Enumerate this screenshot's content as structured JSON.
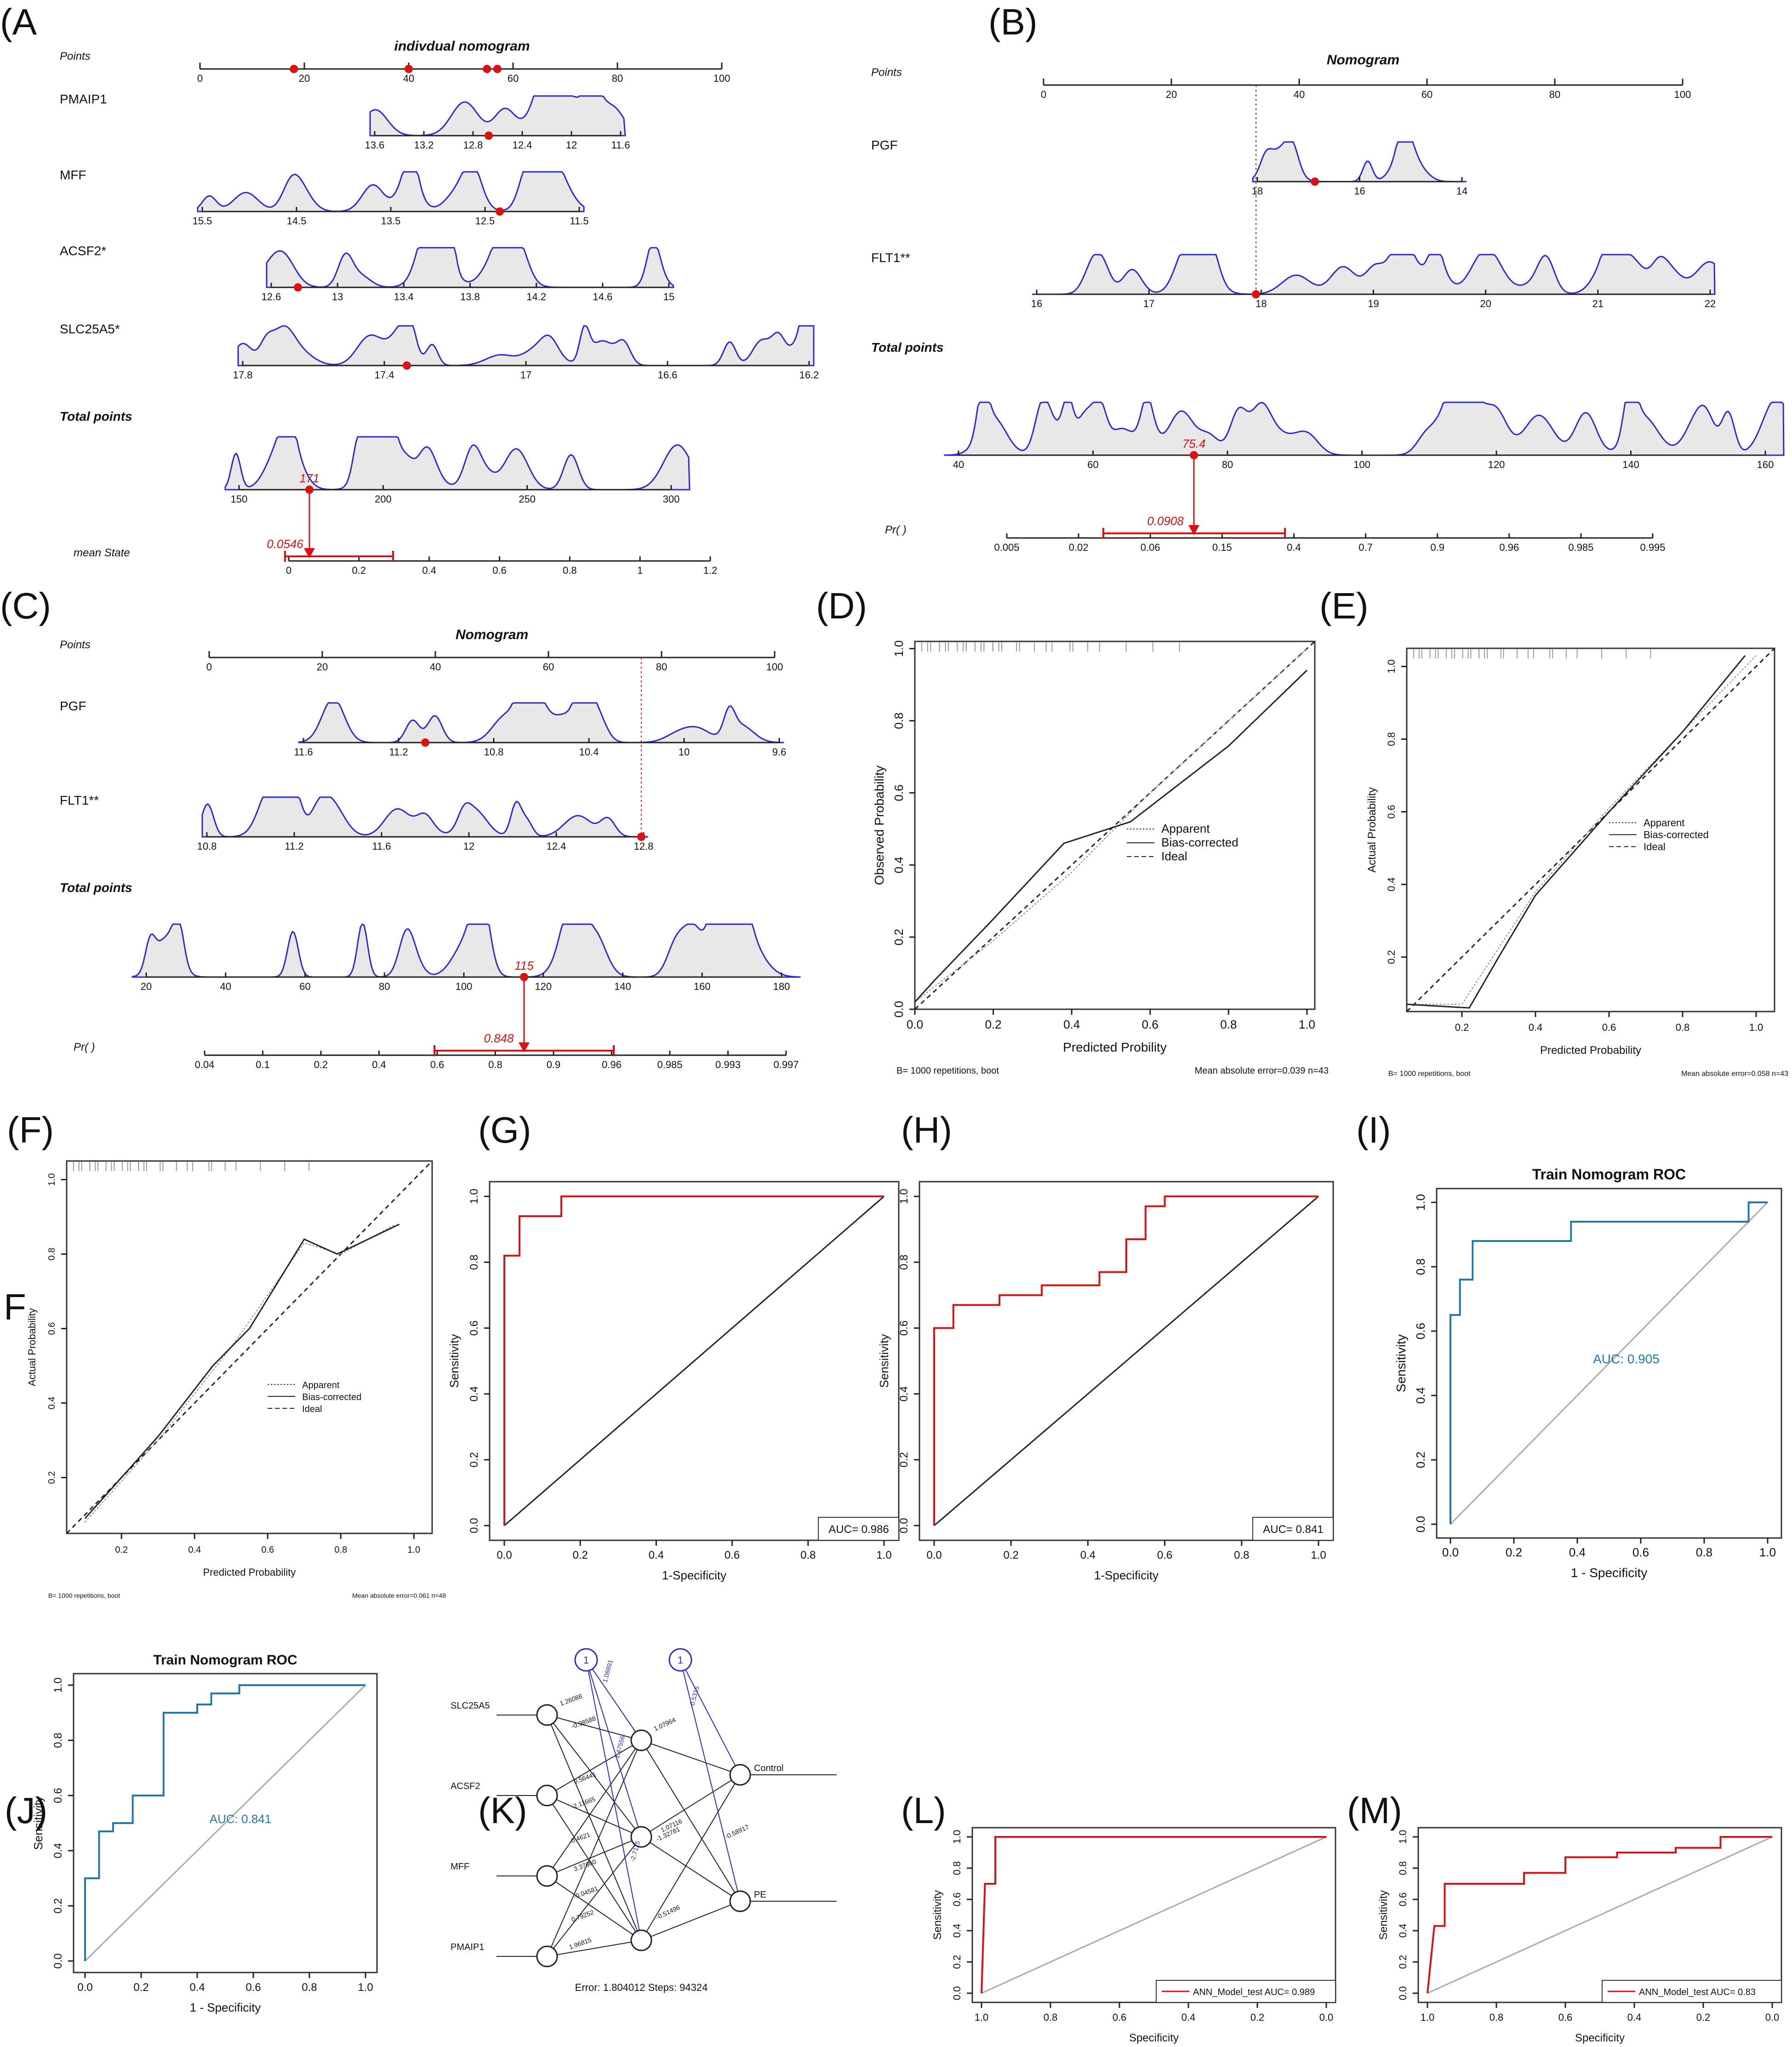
{
  "labels": {
    "A": "(A",
    "B": "(B)",
    "C": "(C)",
    "D": "(D)",
    "E": "(E)",
    "F": "(F)",
    "F2": "F",
    "G": "(G)",
    "H": "(H)",
    "I": "(I)",
    "J": "(J)",
    "K": "(K)",
    "L": "(L)",
    "M": "(M)"
  },
  "colors": {
    "blue": "#2a2ad6",
    "red": "#dd1111",
    "roc_blue": "#1f77b4",
    "gray": "#aaaaaa",
    "fill": "#e8e8e8"
  },
  "chart_data": [
    {
      "panel": "A",
      "type": "nomogram",
      "title": "indivdual nomogram",
      "points_label": "Points",
      "points_ticks": [
        0,
        20,
        40,
        60,
        80,
        100
      ],
      "points_marks": [
        18,
        40,
        55,
        57
      ],
      "variables": [
        {
          "name": "PMAIP1",
          "ticks": [
            "13.6",
            "13.2",
            "12.8",
            "12.4",
            "12",
            "11.6"
          ]
        },
        {
          "name": "MFF",
          "ticks": [
            "15.5",
            "14.5",
            "13.5",
            "12.5",
            "11.5"
          ]
        },
        {
          "name": "ACSF2*",
          "ticks": [
            "12.6",
            "13",
            "13.4",
            "13.8",
            "14.2",
            "14.6",
            "15"
          ]
        },
        {
          "name": "SLC25A5*",
          "ticks": [
            "17.8",
            "17.4",
            "17",
            "16.6",
            "16.2"
          ]
        }
      ],
      "total_label": "Total points",
      "total_ticks": [
        "150",
        "200",
        "250",
        "300"
      ],
      "total_value": "171",
      "prob_label": "mean State",
      "prob_ticks": [
        "0",
        "0.2",
        "0.4",
        "0.6",
        "0.8",
        "1",
        "1.2"
      ],
      "prob_value": "0.0546"
    },
    {
      "panel": "B",
      "type": "nomogram",
      "title": "Nomogram",
      "points_label": "Points",
      "points_ticks": [
        0,
        20,
        40,
        60,
        80,
        100
      ],
      "variables": [
        {
          "name": "PGF",
          "ticks": [
            "18",
            "16",
            "14"
          ]
        },
        {
          "name": "FLT1**",
          "ticks": [
            "16",
            "17",
            "18",
            "19",
            "20",
            "21",
            "22"
          ]
        }
      ],
      "total_label": "Total points",
      "total_ticks": [
        "40",
        "60",
        "80",
        "100",
        "120",
        "140",
        "160"
      ],
      "total_value": "75.4",
      "prob_label": "Pr( )",
      "prob_ticks": [
        "0.005",
        "0.02",
        "0.06",
        "0.15",
        "0.4",
        "0.7",
        "0.9",
        "0.96",
        "0.985",
        "0.995"
      ],
      "prob_value": "0.0908"
    },
    {
      "panel": "C",
      "type": "nomogram",
      "title": "Nomogram",
      "points_label": "Points",
      "points_ticks": [
        0,
        20,
        40,
        60,
        80,
        100
      ],
      "variables": [
        {
          "name": "PGF",
          "ticks": [
            "11.6",
            "11.2",
            "10.8",
            "10.4",
            "10",
            "9.6"
          ]
        },
        {
          "name": "FLT1**",
          "ticks": [
            "10.8",
            "11.2",
            "11.6",
            "12",
            "12.4",
            "12.8"
          ]
        }
      ],
      "total_label": "Total points",
      "total_ticks": [
        "20",
        "40",
        "60",
        "80",
        "100",
        "120",
        "140",
        "160",
        "180"
      ],
      "total_value": "115",
      "prob_label": "Pr( )",
      "prob_ticks": [
        "0.04",
        "0.1",
        "0.2",
        "0.4",
        "0.6",
        "0.8",
        "0.9",
        "0.96",
        "0.985",
        "0.993",
        "0.997"
      ],
      "prob_value": "0.848"
    },
    {
      "panel": "D",
      "type": "calibration",
      "xlabel": "Predicted Probility",
      "ylabel": "Observed Probability",
      "xticks": [
        "0.0",
        "0.2",
        "0.4",
        "0.6",
        "0.8",
        "1.0"
      ],
      "yticks": [
        "0.0",
        "0.2",
        "0.4",
        "0.6",
        "0.8",
        "1.0"
      ],
      "legend": [
        "Apparent",
        "Bias-corrected",
        "Ideal"
      ],
      "foot_left": "B= 1000 repetitions, boot",
      "foot_right": "Mean absolute error=0.039 n=43"
    },
    {
      "panel": "E",
      "type": "calibration",
      "xlabel": "Predicted Probability",
      "ylabel": "Actual Probability",
      "xticks": [
        "0.2",
        "0.4",
        "0.6",
        "0.8",
        "1.0"
      ],
      "yticks": [
        "0.2",
        "0.4",
        "0.6",
        "0.8",
        "1.0"
      ],
      "legend": [
        "Apparent",
        "Bias-corrected",
        "Ideal"
      ],
      "foot_left": "B= 1000 repetitions, boot",
      "foot_right": "Mean absolute error=0.058 n=43"
    },
    {
      "panel": "F",
      "type": "calibration",
      "xlabel": "Predicted Probability",
      "ylabel": "Actual Probability",
      "xticks": [
        "0.2",
        "0.4",
        "0.6",
        "0.8",
        "1.0"
      ],
      "yticks": [
        "0.2",
        "0.4",
        "0.6",
        "0.8",
        "1.0"
      ],
      "legend": [
        "Apparent",
        "Bias-corrected",
        "Ideal"
      ],
      "foot_left": "B= 1000 repetitions, boot",
      "foot_right": "Mean absolute error=0.061 n=48"
    },
    {
      "panel": "G",
      "type": "line",
      "xlabel": "1-Specificity",
      "ylabel": "Sensitivity",
      "auc": "AUC= 0.986",
      "xticks": [
        "0.0",
        "0.2",
        "0.4",
        "0.6",
        "0.8",
        "1.0"
      ],
      "yticks": [
        "0.0",
        "0.2",
        "0.4",
        "0.6",
        "0.8",
        "1.0"
      ]
    },
    {
      "panel": "H",
      "type": "line",
      "xlabel": "1-Specificity",
      "ylabel": "Sensitivity",
      "auc": "AUC= 0.841",
      "xticks": [
        "0.0",
        "0.2",
        "0.4",
        "0.6",
        "0.8",
        "1.0"
      ],
      "yticks": [
        "0.0",
        "0.2",
        "0.4",
        "0.6",
        "0.8",
        "1.0"
      ]
    },
    {
      "panel": "I",
      "type": "line",
      "title": "Train Nomogram ROC",
      "xlabel": "1 - Specificity",
      "ylabel": "Sensitivity",
      "auc": "AUC: 0.905",
      "xticks": [
        "0.0",
        "0.2",
        "0.4",
        "0.6",
        "0.8",
        "1.0"
      ],
      "yticks": [
        "0.0",
        "0.2",
        "0.4",
        "0.6",
        "0.8",
        "1.0"
      ]
    },
    {
      "panel": "J",
      "type": "line",
      "title": "Train Nomogram ROC",
      "xlabel": "1 - Specificity",
      "ylabel": "Sensitivity",
      "auc": "AUC: 0.841",
      "xticks": [
        "0.0",
        "0.2",
        "0.4",
        "0.6",
        "0.8",
        "1.0"
      ],
      "yticks": [
        "0.0",
        "0.2",
        "0.4",
        "0.6",
        "0.8",
        "1.0"
      ]
    },
    {
      "panel": "K",
      "type": "network",
      "inputs": [
        "SLC25A5",
        "ACSF2",
        "MFF",
        "PMAIP1"
      ],
      "outputs": [
        "Control",
        "PE"
      ],
      "bias": "1",
      "weights_in": [
        "1.26088",
        "-0.98588",
        "0.56441",
        "-2.11665",
        "-0.4621",
        "3.37660",
        "-0.04581",
        "0.79252",
        "1.96815"
      ],
      "weights_out": [
        "1.07964",
        "-1.32781",
        "-0.51496",
        "1.07116",
        "-0.58917"
      ],
      "weights_bias": [
        "1.08891",
        "-1.47556",
        "-2.7115",
        "0.5315"
      ],
      "footer": "Error: 1.804012   Steps: 94324"
    },
    {
      "panel": "L",
      "type": "line",
      "xlabel": "Specificity",
      "ylabel": "Sensitivity",
      "legend": "ANN_Model_test AUC= 0.989",
      "xticks": [
        "1.0",
        "0.8",
        "0.6",
        "0.4",
        "0.2",
        "0.0"
      ],
      "yticks": [
        "0.0",
        "0.2",
        "0.4",
        "0.6",
        "0.8",
        "1.0"
      ]
    },
    {
      "panel": "M",
      "type": "line",
      "xlabel": "Specificity",
      "ylabel": "Sensitivity",
      "legend": "ANN_Model_test AUC= 0.83",
      "xticks": [
        "1.0",
        "0.8",
        "0.6",
        "0.4",
        "0.2",
        "0.0"
      ],
      "yticks": [
        "0.0",
        "0.2",
        "0.4",
        "0.6",
        "0.8",
        "1.0"
      ]
    }
  ]
}
